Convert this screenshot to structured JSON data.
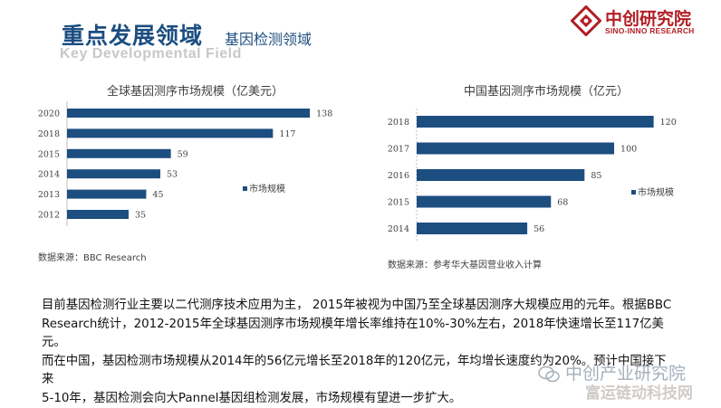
{
  "header": {
    "title": "重点发展领域",
    "subtitle": "基因检测领域",
    "title_en": "Key Developmental Field"
  },
  "logo": {
    "name_cn": "中创研究院",
    "name_en": "SINO-INNO RESEARCH",
    "color": "#b21f24"
  },
  "colors": {
    "bar": "#1c4e80",
    "title": "#1c4e80"
  },
  "chart_data": [
    {
      "type": "bar",
      "orientation": "horizontal",
      "title": "全球基因测序市场规模（亿美元）",
      "categories": [
        "2020",
        "2018",
        "2015",
        "2014",
        "2013",
        "2012"
      ],
      "series": [
        {
          "name": "市场规模",
          "values": [
            138,
            117,
            59,
            53,
            45,
            35
          ]
        }
      ],
      "legend_label": "市场规模",
      "legend": "right",
      "xlim": [
        0,
        140
      ],
      "source": "数据来源：BBC Research"
    },
    {
      "type": "bar",
      "orientation": "horizontal",
      "title": "中国基因测序市场规模（亿元）",
      "categories": [
        "2018",
        "2017",
        "2016",
        "2015",
        "2014"
      ],
      "series": [
        {
          "name": "市场规模",
          "values": [
            120,
            100,
            85,
            68,
            56
          ]
        }
      ],
      "legend_label": "市场规模",
      "legend": "right",
      "xlim": [
        0,
        122
      ],
      "source": "数据来源：参考华大基因营业收入计算"
    }
  ],
  "paragraph": {
    "lines": [
      "目前基因检测行业主要以二代测序技术应用为主， 2015年被视为中国乃至全球基因测序大规模应用的元年。根据BBC",
      "Research统计，2012-2015年全球基因测序市场规模年增长率维持在10%-30%左右，2018年快速增长至117亿美元。",
      "而在中国，基因检测市场规模从2014年的56亿元增长至2018年的120亿元，年均增长速度约为20%。预计中国接下来",
      "5-10年，基因检测会向大Pannel基因组检测发展，市场规模有望进一步扩大。"
    ]
  },
  "watermark": {
    "text": "中创产业研究院",
    "text2": "富运链动科技网"
  }
}
